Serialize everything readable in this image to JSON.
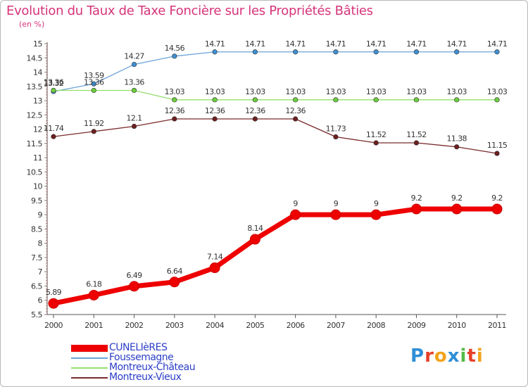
{
  "title": "Evolution du Taux de Taxe Foncière sur les Propriétés Bâties",
  "unit_label": "(en %)",
  "logo": {
    "letters": [
      "P",
      "r",
      "o",
      "x",
      "i",
      "t",
      "i"
    ],
    "colors": [
      "#2e8ed6",
      "#e6402a",
      "#f2a31b",
      "#2e8ed6",
      "#56b947",
      "#e6402a",
      "#f2a31b"
    ]
  },
  "chart_data": {
    "type": "line",
    "title": "Evolution du Taux de Taxe Foncière sur les Propriétés Bâties",
    "ylabel": "(en %)",
    "xlabel": "",
    "x": [
      "2000",
      "2001",
      "2002",
      "2003",
      "2004",
      "2005",
      "2006",
      "2007",
      "2008",
      "2009",
      "2010",
      "2011"
    ],
    "ylim": [
      5.5,
      15
    ],
    "yticks": [
      "5.5",
      "6",
      "6.5",
      "7",
      "7.5",
      "8",
      "8.5",
      "9",
      "9.5",
      "10",
      "10.5",
      "11",
      "11.5",
      "12",
      "12.5",
      "13",
      "13.5",
      "14",
      "14.5",
      "15"
    ],
    "grid": false,
    "legend_position": "bottom-left",
    "series": [
      {
        "name": "CUNELIèRES",
        "color": "#ee0000",
        "markerStroke": "#cc0000",
        "labels": [
          "5.89",
          "6.18",
          "6.49",
          "6.64",
          "7.14",
          "8.14",
          "9",
          "9",
          "9",
          "9.2",
          "9.2",
          "9.2"
        ],
        "values": [
          5.89,
          6.18,
          6.49,
          6.64,
          7.14,
          8.14,
          9,
          9,
          9,
          9.2,
          9.2,
          9.2
        ]
      },
      {
        "name": "Foussemagne",
        "color": "#6da4d8",
        "markerFill": "#3f8fd0",
        "labels": [
          "13.32",
          "13.59",
          "14.27",
          "14.56",
          "14.71",
          "14.71",
          "14.71",
          "14.71",
          "14.71",
          "14.71",
          "14.71",
          "14.71"
        ],
        "values": [
          13.32,
          13.59,
          14.27,
          14.56,
          14.71,
          14.71,
          14.71,
          14.71,
          14.71,
          14.71,
          14.71,
          14.71
        ]
      },
      {
        "name": "Montreux-Château",
        "color": "#93e06b",
        "markerFill": "#6ccd3e",
        "labels": [
          "13.36",
          "13.36",
          "13.36",
          "13.03",
          "13.03",
          "13.03",
          "13.03",
          "13.03",
          "13.03",
          "13.03",
          "13.03",
          "13.03"
        ],
        "values": [
          13.36,
          13.36,
          13.36,
          13.03,
          13.03,
          13.03,
          13.03,
          13.03,
          13.03,
          13.03,
          13.03,
          13.03
        ]
      },
      {
        "name": "Montreux-Vieux",
        "color": "#7a2a2a",
        "markerFill": "#6d1f1f",
        "labels": [
          "11.74",
          "11.92",
          "12.1",
          "12.36",
          "12.36",
          "12.36",
          "12.36",
          "11.73",
          "11.52",
          "11.52",
          "11.38",
          "11.15"
        ],
        "values": [
          11.74,
          11.92,
          12.1,
          12.36,
          12.36,
          12.36,
          12.36,
          11.73,
          11.52,
          11.52,
          11.38,
          11.15
        ]
      }
    ]
  }
}
